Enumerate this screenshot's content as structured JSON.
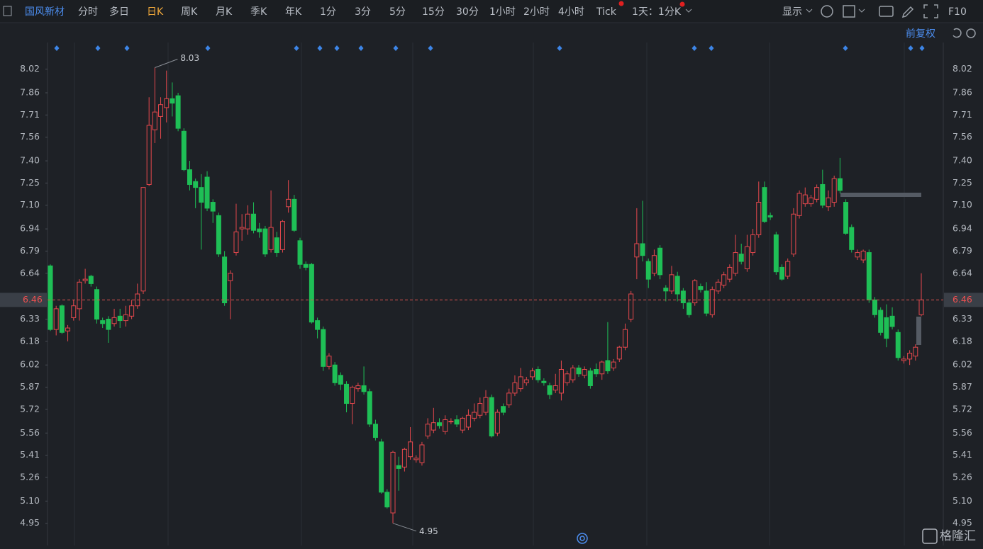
{
  "toolbar": {
    "stock": "国风新材",
    "periods": [
      "分时",
      "多日",
      "日K",
      "周K",
      "月K",
      "季K",
      "年K",
      "1分",
      "3分",
      "5分",
      "15分",
      "30分",
      "1小时",
      "2小时",
      "4小时",
      "Tick"
    ],
    "multi": "1天：1分K",
    "display": "显示",
    "f10": "F10",
    "adjust": "前复权",
    "watermark": "格隆汇"
  },
  "chart_data": {
    "type": "candlestick",
    "up_color": "#e5484d",
    "down_color": "#1fbf56",
    "ylim": [
      4.8,
      8.2
    ],
    "yticks": [
      8.02,
      7.86,
      7.71,
      7.56,
      {
        "value": 7.4,
        "label": "7.40"
      },
      7.25,
      {
        "value": 7.1,
        "label": "7.10"
      },
      6.94,
      6.79,
      6.64,
      6.33,
      6.18,
      6.02,
      5.87,
      5.72,
      5.56,
      5.41,
      5.26,
      {
        "value": 5.1,
        "label": "5.10"
      },
      4.95
    ],
    "grid": false,
    "current_price": 6.46,
    "max_price": 8.03,
    "min_price": 4.95,
    "open": [
      6.69,
      6.26,
      6.42,
      6.25,
      6.34,
      6.4,
      6.59,
      6.62,
      6.53,
      6.32,
      6.33,
      6.3,
      6.35,
      6.32,
      6.35,
      6.42,
      6.52,
      7.24,
      7.61,
      7.7,
      7.76,
      7.82,
      7.84,
      7.6,
      7.34,
      7.26,
      7.22,
      7.29,
      7.12,
      7.03,
      6.75,
      6.59,
      6.78,
      6.94,
      6.94,
      7.04,
      6.94,
      6.94,
      6.8,
      6.88,
      6.8,
      7.09,
      7.14,
      6.86,
      6.7,
      6.7,
      6.32,
      6.26,
      6.01,
      6.02,
      5.95,
      5.89,
      5.76,
      5.86,
      5.88,
      5.84,
      5.62,
      5.5,
      5.16,
      5.02,
      5.34,
      5.33,
      5.4,
      5.38,
      5.36,
      5.54,
      5.58,
      5.63,
      5.57,
      5.64,
      5.65,
      5.58,
      5.6,
      5.66,
      5.68,
      5.7,
      5.8,
      5.56,
      5.74,
      5.75,
      5.83,
      5.86,
      5.9,
      5.94,
      5.99,
      5.91,
      5.88,
      5.85,
      5.83,
      5.9,
      5.92,
      6.0,
      5.95,
      5.98,
      5.99,
      5.96,
      6.05,
      6.0,
      6.06,
      6.14,
      6.33,
      6.75,
      6.84,
      6.72,
      6.64,
      6.81,
      6.54,
      6.52,
      6.62,
      6.52,
      6.44,
      6.44,
      6.55,
      6.52,
      6.36,
      6.52,
      6.56,
      6.6,
      6.64,
      6.77,
      6.67,
      6.78,
      6.9,
      7.22,
      7.03,
      6.9,
      6.68,
      6.62,
      6.77,
      7.03,
      7.11,
      7.11,
      7.14,
      7.24,
      7.09,
      7.12,
      7.28,
      7.12,
      6.95,
      6.75,
      6.73,
      6.78,
      6.46,
      6.39,
      6.34,
      6.35,
      6.24,
      6.05,
      6.06,
      6.08,
      6.36
    ],
    "high": [
      6.7,
      6.42,
      6.43,
      6.29,
      6.46,
      6.6,
      6.67,
      6.63,
      6.55,
      6.34,
      6.35,
      6.4,
      6.4,
      6.42,
      6.46,
      6.57,
      7.22,
      7.83,
      8.03,
      7.83,
      8.01,
      7.93,
      7.86,
      7.62,
      7.4,
      7.28,
      7.31,
      7.33,
      7.14,
      7.05,
      6.79,
      6.66,
      7.11,
      7.04,
      7.1,
      7.12,
      6.98,
      6.96,
      7.2,
      6.92,
      7.0,
      7.27,
      7.17,
      6.88,
      6.72,
      6.71,
      6.34,
      6.28,
      6.1,
      6.04,
      5.97,
      5.91,
      5.88,
      5.9,
      6.01,
      5.86,
      5.65,
      5.52,
      5.18,
      5.44,
      5.4,
      5.46,
      5.6,
      5.41,
      5.5,
      5.66,
      5.73,
      5.66,
      5.68,
      5.66,
      5.68,
      5.67,
      5.72,
      5.76,
      5.8,
      5.85,
      5.82,
      5.72,
      5.76,
      5.86,
      5.95,
      6.0,
      5.94,
      6.0,
      6.01,
      5.93,
      5.9,
      5.96,
      6.05,
      5.98,
      6.02,
      6.02,
      6.01,
      6.0,
      6.03,
      6.05,
      6.31,
      6.06,
      6.15,
      6.3,
      6.52,
      7.08,
      7.13,
      6.74,
      6.8,
      6.83,
      6.56,
      6.69,
      6.65,
      6.54,
      6.46,
      6.6,
      6.57,
      6.58,
      6.55,
      6.6,
      6.65,
      6.7,
      6.9,
      6.84,
      6.9,
      6.94,
      7.26,
      7.26,
      7.05,
      6.92,
      6.7,
      6.74,
      7.08,
      7.2,
      7.22,
      7.17,
      7.24,
      7.34,
      7.2,
      7.3,
      7.42,
      7.14,
      6.97,
      6.8,
      6.8,
      6.8,
      6.48,
      6.41,
      6.43,
      6.41,
      6.26,
      6.08,
      6.12,
      6.16,
      6.64
    ],
    "low": [
      6.25,
      6.22,
      6.23,
      6.18,
      6.32,
      6.32,
      6.57,
      6.55,
      6.3,
      6.27,
      6.17,
      6.28,
      6.27,
      6.28,
      6.33,
      6.4,
      6.5,
      7.23,
      7.52,
      7.55,
      7.66,
      7.7,
      7.6,
      7.33,
      7.2,
      7.08,
      6.8,
      7.06,
      6.98,
      6.75,
      6.42,
      6.33,
      6.76,
      6.86,
      6.9,
      6.91,
      6.88,
      6.75,
      6.78,
      6.75,
      6.78,
      7.05,
      6.92,
      6.67,
      6.66,
      6.3,
      6.2,
      5.98,
      5.99,
      5.88,
      5.85,
      5.7,
      5.62,
      5.84,
      5.82,
      5.6,
      5.51,
      5.15,
      5.05,
      4.95,
      5.17,
      5.3,
      5.38,
      5.36,
      5.34,
      5.52,
      5.56,
      5.59,
      5.55,
      5.62,
      5.6,
      5.56,
      5.58,
      5.64,
      5.66,
      5.68,
      5.53,
      5.54,
      5.68,
      5.73,
      5.81,
      5.84,
      5.88,
      5.92,
      5.9,
      5.88,
      5.79,
      5.83,
      5.78,
      5.88,
      5.9,
      5.94,
      5.93,
      5.86,
      5.94,
      5.92,
      5.96,
      5.98,
      6.04,
      6.12,
      6.31,
      6.6,
      6.72,
      6.54,
      6.62,
      6.6,
      6.45,
      6.5,
      6.45,
      6.4,
      6.34,
      6.42,
      6.51,
      6.35,
      6.34,
      6.5,
      6.54,
      6.58,
      6.62,
      6.7,
      6.65,
      6.76,
      6.88,
      6.98,
      7.0,
      6.63,
      6.59,
      6.6,
      6.75,
      7.01,
      7.09,
      7.09,
      7.12,
      7.08,
      7.06,
      7.09,
      7.18,
      6.9,
      6.78,
      6.73,
      6.71,
      6.44,
      6.34,
      6.22,
      6.14,
      6.26,
      6.05,
      6.03,
      6.02,
      6.05,
      6.35
    ],
    "close": [
      6.26,
      6.4,
      6.24,
      6.27,
      6.42,
      6.58,
      6.6,
      6.57,
      6.33,
      6.3,
      6.26,
      6.34,
      6.32,
      6.36,
      6.42,
      6.5,
      7.22,
      7.64,
      7.73,
      7.78,
      7.82,
      7.79,
      7.62,
      7.34,
      7.24,
      7.22,
      7.12,
      7.08,
      7.06,
      6.77,
      6.44,
      6.64,
      6.92,
      6.95,
      7.04,
      6.93,
      6.92,
      6.77,
      6.95,
      6.78,
      6.99,
      7.14,
      6.93,
      6.7,
      6.68,
      6.31,
      6.26,
      6.01,
      6.08,
      5.9,
      5.89,
      5.76,
      5.87,
      5.88,
      5.84,
      5.62,
      5.53,
      5.16,
      5.06,
      5.43,
      5.32,
      5.45,
      5.5,
      5.39,
      5.48,
      5.62,
      5.63,
      5.61,
      5.65,
      5.64,
      5.62,
      5.66,
      5.68,
      5.7,
      5.76,
      5.8,
      5.54,
      5.7,
      5.7,
      5.83,
      5.9,
      5.94,
      5.92,
      5.98,
      5.92,
      5.9,
      5.82,
      5.88,
      5.99,
      5.96,
      6.0,
      5.96,
      5.99,
      5.88,
      5.96,
      6.04,
      5.98,
      6.04,
      6.14,
      6.26,
      6.5,
      6.84,
      6.76,
      6.6,
      6.76,
      6.63,
      6.52,
      6.63,
      6.5,
      6.44,
      6.36,
      6.59,
      6.53,
      6.37,
      6.53,
      6.58,
      6.63,
      6.68,
      6.78,
      6.72,
      6.82,
      6.9,
      7.12,
      6.99,
      7.02,
      6.65,
      6.6,
      6.72,
      7.04,
      7.18,
      7.17,
      7.15,
      7.22,
      7.1,
      7.15,
      7.28,
      7.2,
      6.91,
      6.8,
      6.78,
      6.79,
      6.46,
      6.36,
      6.24,
      6.2,
      6.28,
      6.07,
      6.06,
      6.1,
      6.14,
      6.46
    ]
  }
}
